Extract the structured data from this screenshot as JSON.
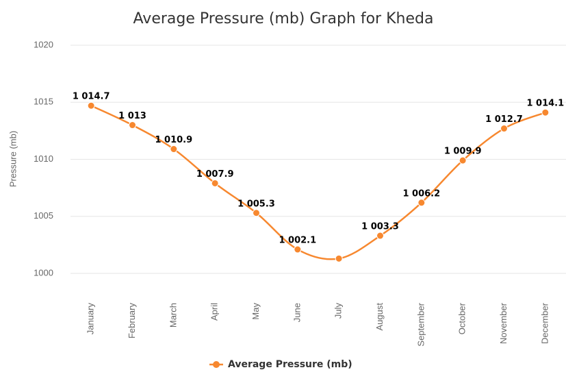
{
  "chart_data": {
    "type": "line",
    "title": "Average Pressure (mb) Graph for Kheda",
    "y_label": "Pressure (mb)",
    "categories": [
      "January",
      "February",
      "March",
      "April",
      "May",
      "June",
      "July",
      "August",
      "September",
      "October",
      "November",
      "December"
    ],
    "series": [
      {
        "name": "Average Pressure (mb)",
        "color": "#f7882f",
        "values": [
          1014.7,
          1013,
          1010.9,
          1007.9,
          1005.3,
          1002.1,
          1001.3,
          1003.3,
          1006.2,
          1009.9,
          1012.7,
          1014.1
        ],
        "value_labels": [
          "1 014.7",
          "1 013",
          "1 010.9",
          "1 007.9",
          "1 005.3",
          "1 002.1",
          null,
          "1 003.3",
          "1 006.2",
          "1 009.9",
          "1 012.7",
          "1 014.1"
        ]
      }
    ],
    "ylim": [
      1000,
      1020
    ],
    "yticks": [
      1000,
      1005,
      1010,
      1015,
      1020
    ],
    "grid": true,
    "smooth": true,
    "legend": "bottom"
  }
}
